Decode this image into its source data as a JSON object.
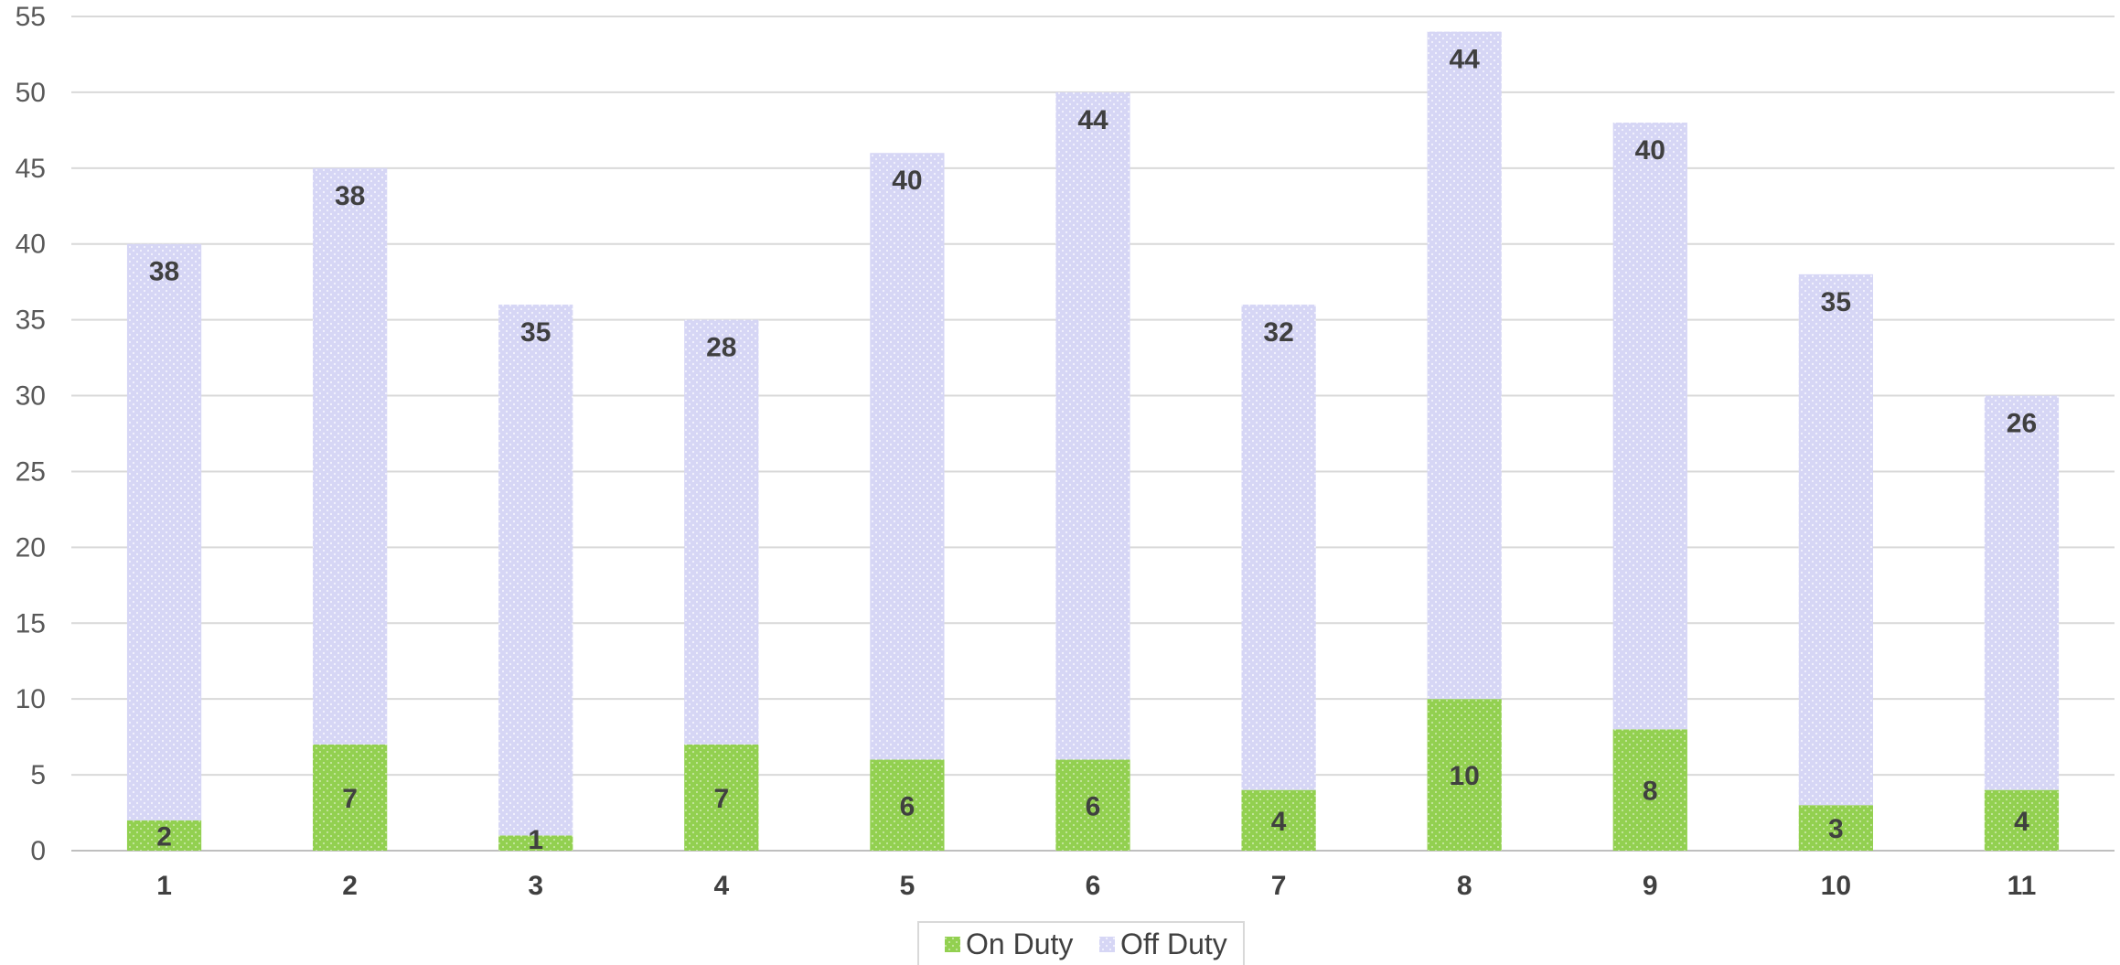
{
  "chart_data": {
    "type": "bar",
    "stacked": true,
    "categories": [
      "1",
      "2",
      "3",
      "4",
      "5",
      "6",
      "7",
      "8",
      "9",
      "10",
      "11"
    ],
    "series": [
      {
        "name": "On Duty",
        "values": [
          2,
          7,
          1,
          7,
          6,
          6,
          4,
          10,
          8,
          3,
          4
        ],
        "color": "#92D050"
      },
      {
        "name": "Off Duty",
        "values": [
          38,
          38,
          35,
          28,
          40,
          44,
          32,
          44,
          40,
          35,
          26
        ],
        "color": "#D9D9F7"
      }
    ],
    "ylim": [
      0,
      55
    ],
    "yticks": [
      0,
      5,
      10,
      15,
      20,
      25,
      30,
      35,
      40,
      45,
      50,
      55
    ],
    "grid": true,
    "legend_position": "bottom",
    "gridline_color": "#D9D9D9",
    "label_color": "#404040"
  }
}
